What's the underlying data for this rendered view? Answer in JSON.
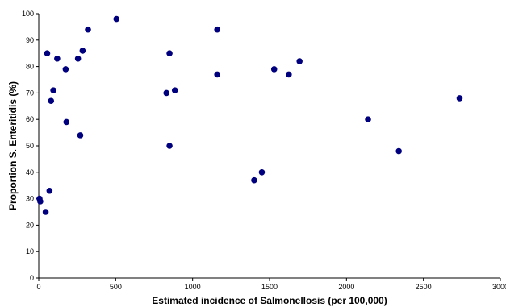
{
  "chart_data": {
    "type": "scatter",
    "xlabel": "Estimated incidence of Salmonellosis (per 100,000)",
    "ylabel": "Proportion S. Enteritidis (%)",
    "xlim": [
      0,
      3000
    ],
    "ylim": [
      0,
      100
    ],
    "x_ticks": [
      0,
      500,
      1000,
      1500,
      2000,
      2500,
      3000
    ],
    "y_ticks": [
      0,
      10,
      20,
      30,
      40,
      50,
      60,
      70,
      80,
      90,
      100
    ],
    "grid": false,
    "legend": "none",
    "marker_color": "#00007f",
    "points": [
      {
        "x": 5,
        "y": 30
      },
      {
        "x": 10,
        "y": 29
      },
      {
        "x": 45,
        "y": 25
      },
      {
        "x": 55,
        "y": 85
      },
      {
        "x": 70,
        "y": 33
      },
      {
        "x": 80,
        "y": 67
      },
      {
        "x": 95,
        "y": 71
      },
      {
        "x": 120,
        "y": 83
      },
      {
        "x": 175,
        "y": 79
      },
      {
        "x": 180,
        "y": 59
      },
      {
        "x": 255,
        "y": 83
      },
      {
        "x": 270,
        "y": 54
      },
      {
        "x": 285,
        "y": 86
      },
      {
        "x": 320,
        "y": 94
      },
      {
        "x": 505,
        "y": 98
      },
      {
        "x": 830,
        "y": 70
      },
      {
        "x": 850,
        "y": 85
      },
      {
        "x": 850,
        "y": 50
      },
      {
        "x": 885,
        "y": 71
      },
      {
        "x": 1160,
        "y": 94
      },
      {
        "x": 1160,
        "y": 77
      },
      {
        "x": 1400,
        "y": 37
      },
      {
        "x": 1450,
        "y": 40
      },
      {
        "x": 1530,
        "y": 79
      },
      {
        "x": 1625,
        "y": 77
      },
      {
        "x": 1695,
        "y": 82
      },
      {
        "x": 2140,
        "y": 60
      },
      {
        "x": 2340,
        "y": 48
      },
      {
        "x": 2735,
        "y": 68
      }
    ]
  }
}
